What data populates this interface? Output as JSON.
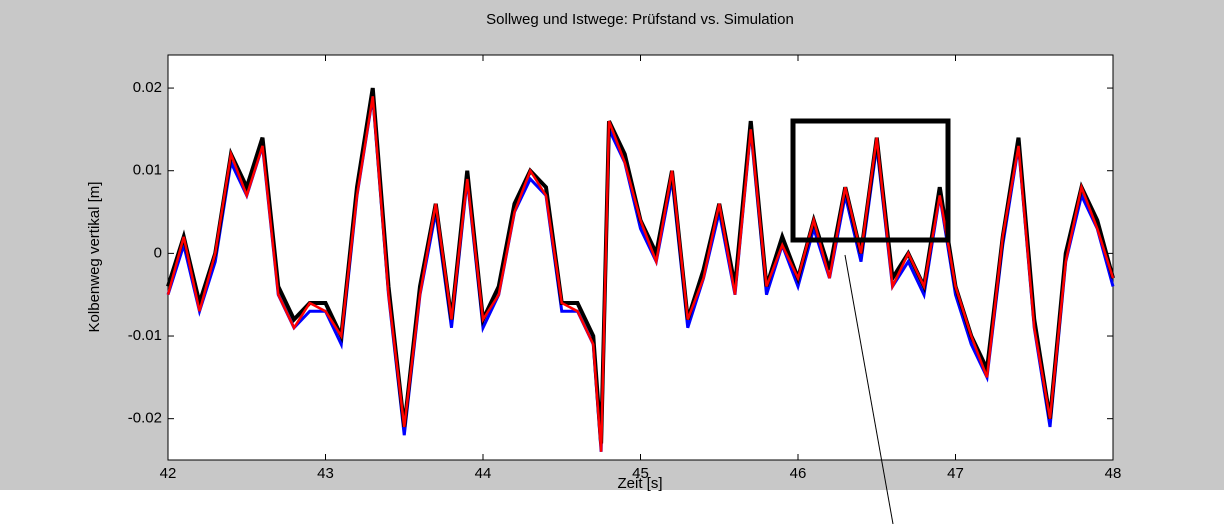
{
  "chart_data": {
    "type": "line",
    "title": "Sollweg und Istwege: Prüfstand vs. Simulation",
    "x_label": "Zeit [s]",
    "y_label": "Kolbenweg vertikal [m]",
    "xlim": [
      42,
      48
    ],
    "xticks": [
      42,
      43,
      44,
      45,
      46,
      47,
      48
    ],
    "ylim": [
      -0.025,
      0.024
    ],
    "yticks": [
      -0.02,
      -0.01,
      0,
      0.01,
      0.02
    ],
    "x": [
      42.0,
      42.1,
      42.2,
      42.3,
      42.4,
      42.5,
      42.6,
      42.7,
      42.8,
      42.9,
      43.0,
      43.1,
      43.2,
      43.3,
      43.4,
      43.5,
      43.6,
      43.7,
      43.8,
      43.9,
      44.0,
      44.1,
      44.2,
      44.3,
      44.4,
      44.5,
      44.6,
      44.7,
      44.75,
      44.8,
      44.9,
      45.0,
      45.1,
      45.2,
      45.3,
      45.4,
      45.5,
      45.6,
      45.7,
      45.8,
      45.9,
      46.0,
      46.1,
      46.2,
      46.3,
      46.4,
      46.5,
      46.6,
      46.7,
      46.8,
      46.9,
      47.0,
      47.1,
      47.2,
      47.3,
      47.4,
      47.5,
      47.6,
      47.7,
      47.8,
      47.9,
      48.0
    ],
    "series": [
      {
        "color": "#0000ff",
        "values": [
          -0.005,
          0.001,
          -0.007,
          -0.001,
          0.011,
          0.007,
          0.013,
          -0.005,
          -0.009,
          -0.007,
          -0.007,
          -0.011,
          0.007,
          0.019,
          -0.005,
          -0.022,
          -0.005,
          0.005,
          -0.009,
          0.009,
          -0.009,
          -0.005,
          0.005,
          0.009,
          0.007,
          -0.007,
          -0.007,
          -0.011,
          -0.024,
          0.015,
          0.011,
          0.003,
          -0.001,
          0.009,
          -0.009,
          -0.003,
          0.005,
          -0.005,
          0.015,
          -0.005,
          0.001,
          -0.004,
          0.003,
          -0.003,
          0.007,
          -0.001,
          0.013,
          -0.004,
          -0.001,
          -0.005,
          0.007,
          -0.005,
          -0.011,
          -0.015,
          0.001,
          0.013,
          -0.009,
          -0.021,
          -0.001,
          0.007,
          0.003,
          -0.004
        ]
      },
      {
        "color": "#000000",
        "values": [
          -0.004,
          0.002,
          -0.006,
          0.0,
          0.012,
          0.008,
          0.014,
          -0.004,
          -0.008,
          -0.006,
          -0.006,
          -0.01,
          0.008,
          0.02,
          -0.004,
          -0.021,
          -0.004,
          0.006,
          -0.008,
          0.01,
          -0.008,
          -0.004,
          0.006,
          0.01,
          0.008,
          -0.006,
          -0.006,
          -0.01,
          -0.023,
          0.016,
          0.012,
          0.004,
          0.0,
          0.01,
          -0.008,
          -0.002,
          0.006,
          -0.004,
          0.016,
          -0.004,
          0.002,
          -0.003,
          0.004,
          -0.002,
          0.008,
          0.0,
          0.014,
          -0.003,
          0.0,
          -0.004,
          0.008,
          -0.004,
          -0.01,
          -0.014,
          0.002,
          0.014,
          -0.008,
          -0.02,
          0.0,
          0.008,
          0.004,
          -0.003
        ]
      },
      {
        "color": "#ff0000",
        "values": [
          -0.005,
          0.002,
          -0.007,
          0.0,
          0.012,
          0.007,
          0.013,
          -0.005,
          -0.009,
          -0.006,
          -0.007,
          -0.01,
          0.007,
          0.019,
          -0.005,
          -0.021,
          -0.005,
          0.006,
          -0.008,
          0.009,
          -0.008,
          -0.005,
          0.005,
          0.01,
          0.007,
          -0.006,
          -0.007,
          -0.011,
          -0.024,
          0.016,
          0.011,
          0.004,
          -0.001,
          0.01,
          -0.008,
          -0.003,
          0.006,
          -0.005,
          0.015,
          -0.004,
          0.001,
          -0.003,
          0.004,
          -0.003,
          0.008,
          0.0,
          0.014,
          -0.004,
          0.0,
          -0.004,
          0.007,
          -0.004,
          -0.01,
          -0.015,
          0.002,
          0.013,
          -0.009,
          -0.02,
          -0.001,
          0.008,
          0.003,
          -0.003
        ]
      }
    ]
  }
}
